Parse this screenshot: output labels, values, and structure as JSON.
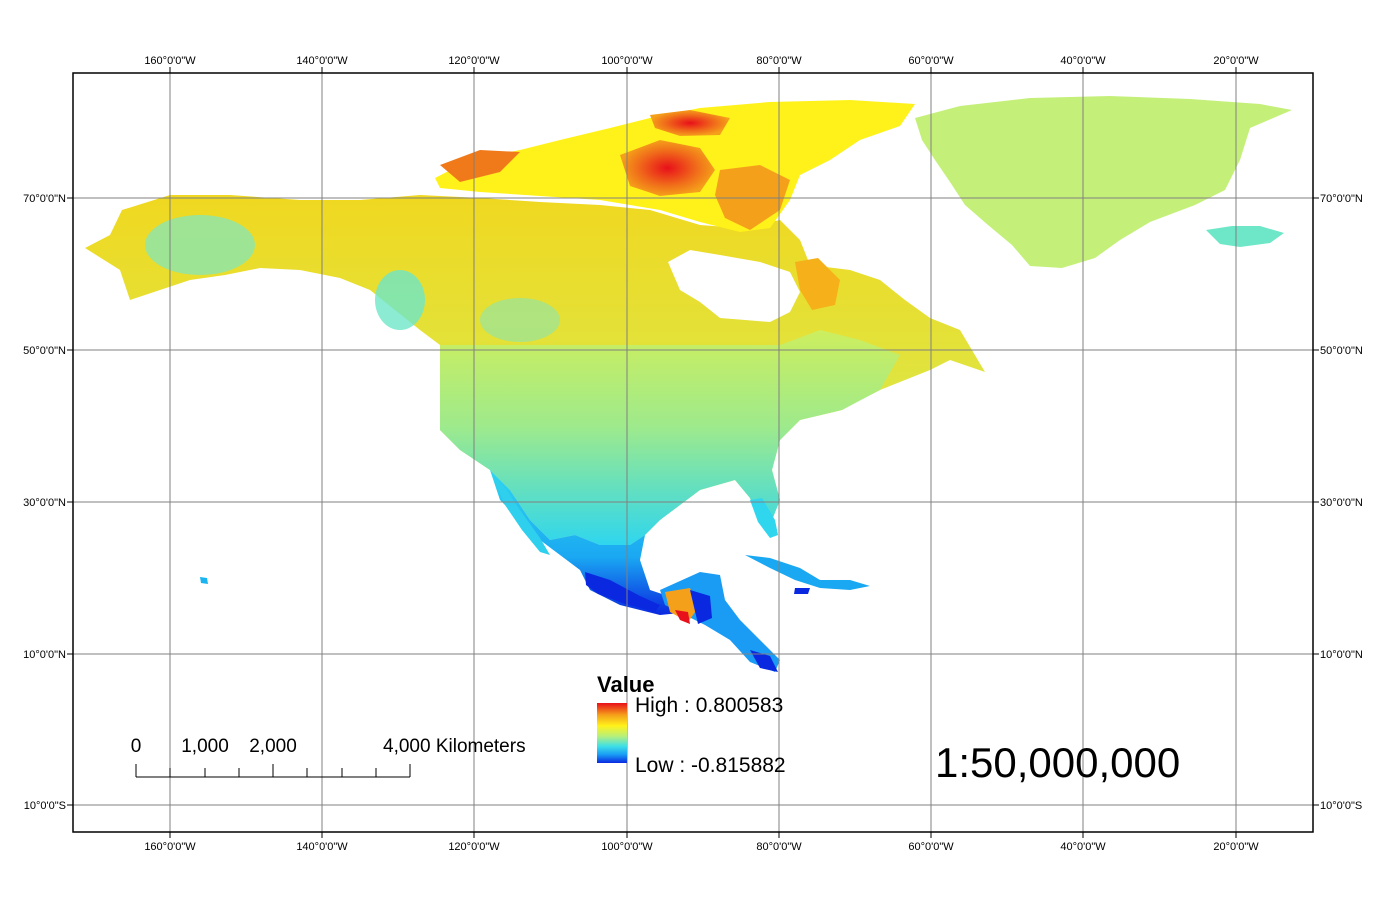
{
  "map": {
    "longitude_labels": [
      "160°0'0\"W",
      "140°0'0\"W",
      "120°0'0\"W",
      "100°0'0\"W",
      "80°0'0\"W",
      "60°0'0\"W",
      "40°0'0\"W",
      "20°0'0\"W"
    ],
    "latitude_labels": [
      "70°0'0\"N",
      "50°0'0\"N",
      "30°0'0\"N",
      "10°0'0\"N",
      "10°0'0\"S"
    ],
    "colors": {
      "high": "#e8101a",
      "high_mid": "#f5a01a",
      "mid_high": "#fff21a",
      "mid": "#c8f06e",
      "mid_low": "#6ee6c8",
      "low_mid": "#1ad2f5",
      "low": "#0a28e0",
      "grid": "#808080",
      "frame": "#000000"
    }
  },
  "legend": {
    "title": "Value",
    "high_label": "High : 0.800583",
    "low_label": "Low : -0.815882"
  },
  "scale_bar": {
    "labels": [
      "0",
      "1,000",
      "2,000",
      "4,000 Kilometers"
    ]
  },
  "scale_ratio": "1:50,000,000"
}
